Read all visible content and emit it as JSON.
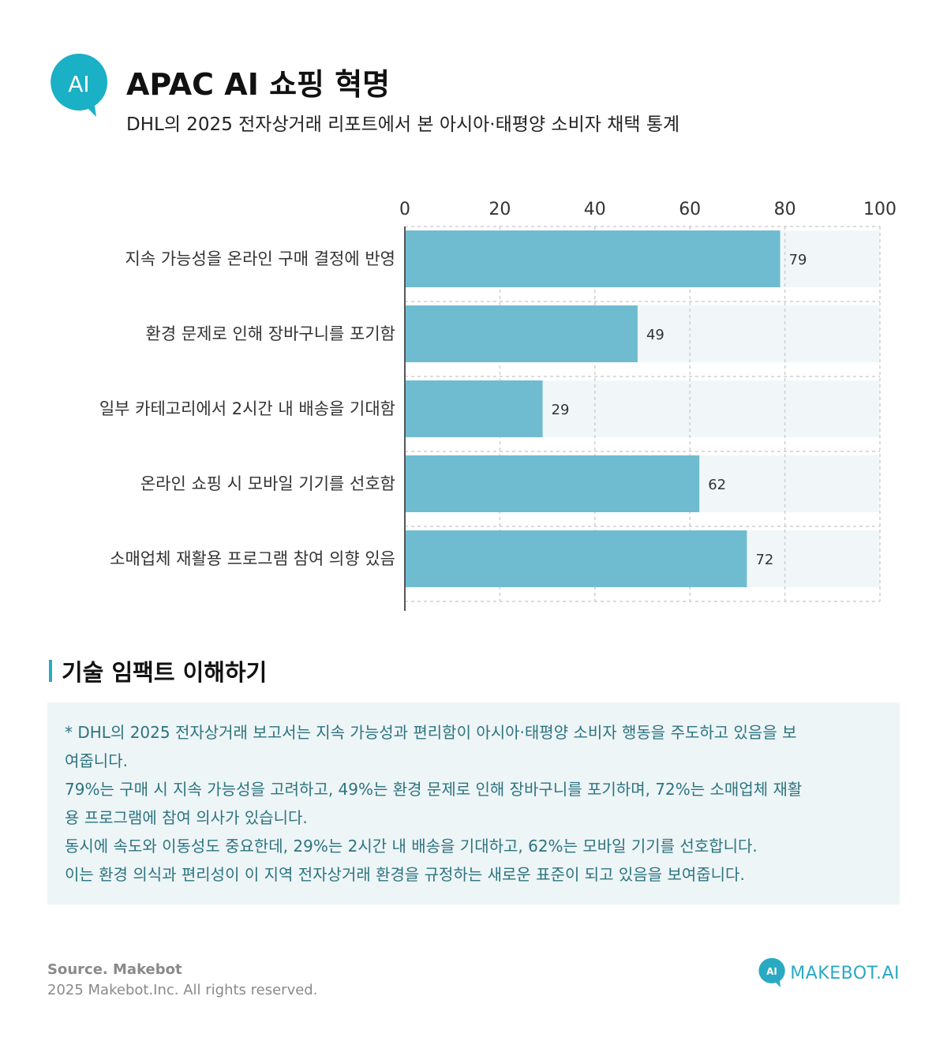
{
  "header": {
    "logo_text": "AI",
    "title": "APAC AI 쇼핑 혁명",
    "subtitle": "DHL의 2025 전자상거래 리포트에서 본 아시아·태평양 소비자 채택 통계"
  },
  "chart_data": {
    "type": "bar",
    "orientation": "horizontal",
    "categories": [
      "지속 가능성을 온라인 구매 결정에 반영",
      "환경 문제로 인해 장바구니를 포기함",
      "일부 카테고리에서 2시간 내 배송을 기대함",
      "온라인 쇼핑 시 모바일 기기를 선호함",
      "소매업체 재활용 프로그램 참여 의향 있음"
    ],
    "values": [
      79,
      49,
      29,
      62,
      72
    ],
    "xlim": [
      0,
      100
    ],
    "x_ticks": [
      "0",
      "20",
      "40",
      "60",
      "80",
      "100"
    ],
    "tick_values": [
      0,
      20,
      40,
      60,
      80,
      100
    ],
    "axis_position": "top",
    "grid": true,
    "bar_color": "#6fbcd1",
    "track_color": "#f1f7f9",
    "title": "",
    "xlabel": "",
    "ylabel": ""
  },
  "section": {
    "title": "기술 임팩트 이해하기"
  },
  "insight": {
    "lines": [
      "* DHL의 2025 전자상거래 보고서는 지속 가능성과 편리함이 아시아·태평양 소비자 행동을 주도하고 있음을 보",
      "여줍니다.",
      " 79%는 구매 시 지속 가능성을 고려하고, 49%는 환경 문제로 인해 장바구니를 포기하며, 72%는 소매업체 재활",
      "용 프로그램에 참여 의사가 있습니다.",
      " 동시에 속도와 이동성도 중요한데, 29%는 2시간 내 배송을 기대하고, 62%는 모바일 기기를 선호합니다.",
      " 이는 환경 의식과 편리성이 이 지역 전자상거래 환경을 규정하는 새로운 표준이 되고 있음을 보여줍니다."
    ]
  },
  "footer": {
    "source": "Source. Makebot",
    "rights": "2025 Makebot.Inc. All rights reserved.",
    "brand": "MAKEBOT.AI",
    "brand_icon_text": "AI"
  },
  "colors": {
    "accent": "#2aa9c3",
    "insight_text": "#2c7480",
    "insight_bg": "#eef5f7"
  }
}
